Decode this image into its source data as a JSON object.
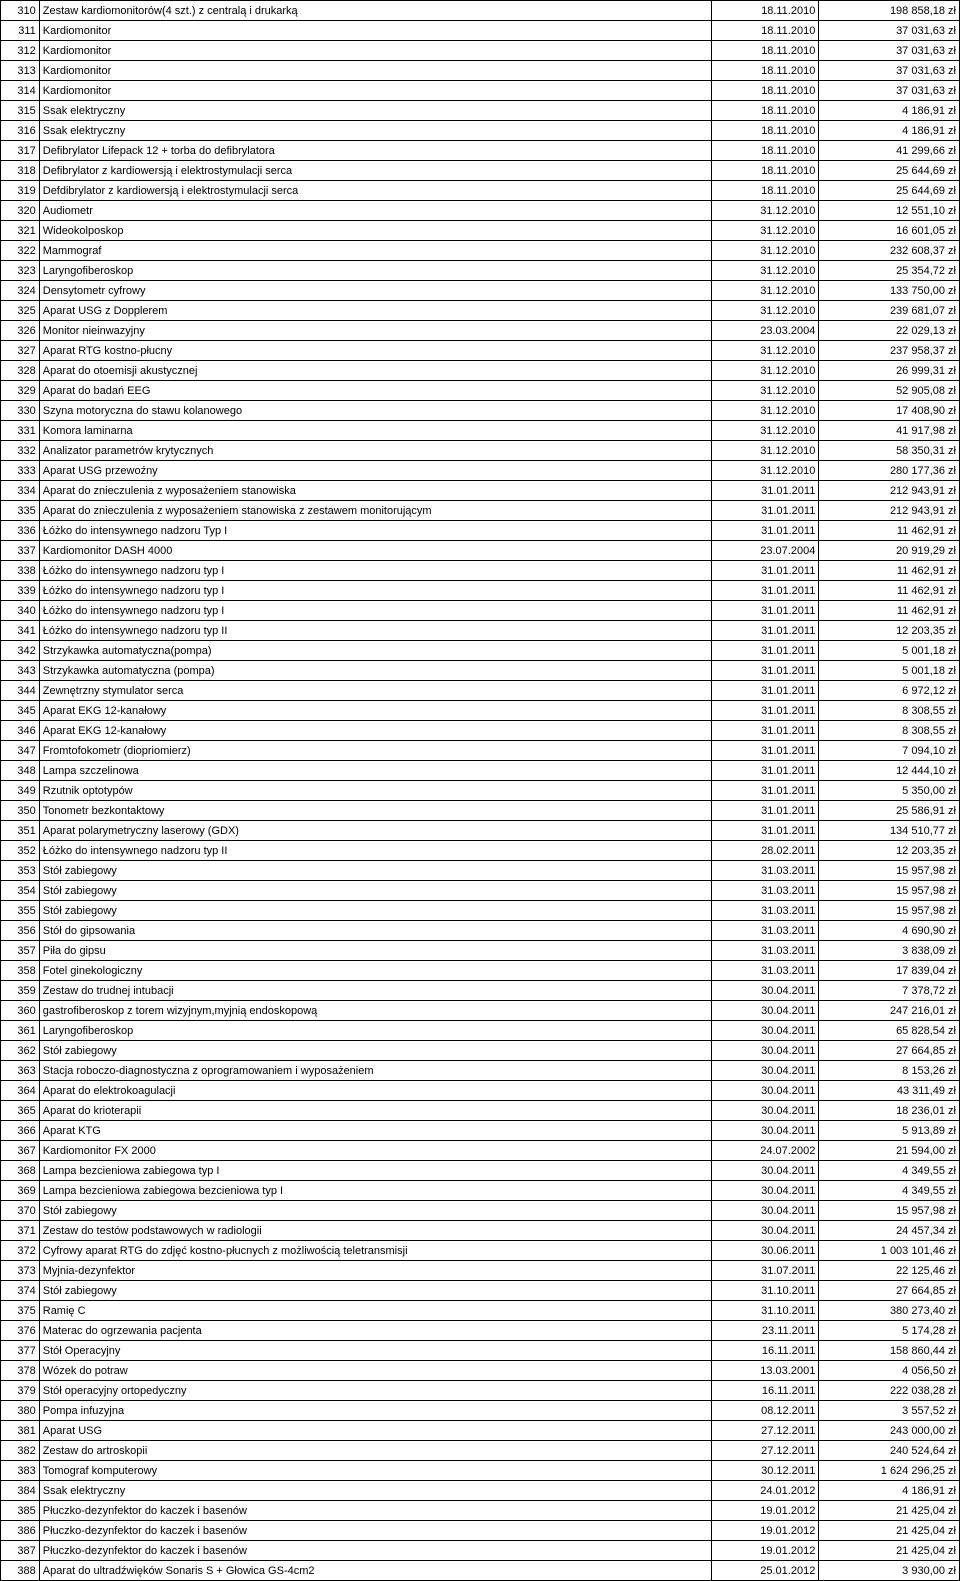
{
  "table": {
    "rows": [
      {
        "num": "310",
        "name": "Zestaw kardiomonitorów(4 szt.) z centralą i drukarką",
        "date": "18.11.2010",
        "value": "198 858,18 zł"
      },
      {
        "num": "311",
        "name": "Kardiomonitor",
        "date": "18.11.2010",
        "value": "37 031,63 zł"
      },
      {
        "num": "312",
        "name": "Kardiomonitor",
        "date": "18.11.2010",
        "value": "37 031,63 zł"
      },
      {
        "num": "313",
        "name": "Kardiomonitor",
        "date": "18.11.2010",
        "value": "37 031,63 zł"
      },
      {
        "num": "314",
        "name": "Kardiomonitor",
        "date": "18.11.2010",
        "value": "37 031,63 zł"
      },
      {
        "num": "315",
        "name": "Ssak elektryczny",
        "date": "18.11.2010",
        "value": "4 186,91 zł"
      },
      {
        "num": "316",
        "name": "Ssak elektryczny",
        "date": "18.11.2010",
        "value": "4 186,91 zł"
      },
      {
        "num": "317",
        "name": "Defibrylator Lifepack 12 + torba do defibrylatora",
        "date": "18.11.2010",
        "value": "41 299,66 zł"
      },
      {
        "num": "318",
        "name": "Defibrylator z kardiowersją i elektrostymulacji serca",
        "date": "18.11.2010",
        "value": "25 644,69 zł"
      },
      {
        "num": "319",
        "name": "Defdibrylator z kardiowersją i elektrostymulacji serca",
        "date": "18.11.2010",
        "value": "25 644,69 zł"
      },
      {
        "num": "320",
        "name": "Audiometr",
        "date": "31.12.2010",
        "value": "12 551,10 zł"
      },
      {
        "num": "321",
        "name": "Wideokolposkop",
        "date": "31.12.2010",
        "value": "16 601,05 zł"
      },
      {
        "num": "322",
        "name": "Mammograf",
        "date": "31.12.2010",
        "value": "232 608,37 zł"
      },
      {
        "num": "323",
        "name": "Laryngofiberoskop",
        "date": "31.12.2010",
        "value": "25 354,72 zł"
      },
      {
        "num": "324",
        "name": "Densytometr cyfrowy",
        "date": "31.12.2010",
        "value": "133 750,00 zł"
      },
      {
        "num": "325",
        "name": "Aparat USG z Dopplerem",
        "date": "31.12.2010",
        "value": "239 681,07 zł"
      },
      {
        "num": "326",
        "name": "Monitor nieinwazyjny",
        "date": "23.03.2004",
        "value": "22 029,13 zł"
      },
      {
        "num": "327",
        "name": "Aparat RTG kostno-płucny",
        "date": "31.12.2010",
        "value": "237 958,37 zł"
      },
      {
        "num": "328",
        "name": "Aparat do otoemisji akustycznej",
        "date": "31.12.2010",
        "value": "26 999,31 zł"
      },
      {
        "num": "329",
        "name": "Aparat do badań EEG",
        "date": "31.12.2010",
        "value": "52 905,08 zł"
      },
      {
        "num": "330",
        "name": "Szyna motoryczna do stawu kolanowego",
        "date": "31.12.2010",
        "value": "17 408,90 zł"
      },
      {
        "num": "331",
        "name": "Komora laminarna",
        "date": "31.12.2010",
        "value": "41 917,98 zł"
      },
      {
        "num": "332",
        "name": "Analizator parametrów krytycznych",
        "date": "31.12.2010",
        "value": "58 350,31 zł"
      },
      {
        "num": "333",
        "name": "Aparat USG przewoźny",
        "date": "31.12.2010",
        "value": "280 177,36 zł"
      },
      {
        "num": "334",
        "name": "Aparat do znieczulenia z wyposażeniem stanowiska",
        "date": "31.01.2011",
        "value": "212 943,91 zł"
      },
      {
        "num": "335",
        "name": "Aparat do znieczulenia z wyposażeniem stanowiska z zestawem monitorującym",
        "date": "31.01.2011",
        "value": "212 943,91 zł"
      },
      {
        "num": "336",
        "name": "Łóżko do intensywnego nadzoru Typ I",
        "date": "31.01.2011",
        "value": "11 462,91 zł"
      },
      {
        "num": "337",
        "name": "Kardiomonitor DASH 4000",
        "date": "23.07.2004",
        "value": "20 919,29 zł"
      },
      {
        "num": "338",
        "name": "Łóżko do intensywnego nadzoru typ I",
        "date": "31.01.2011",
        "value": "11 462,91 zł"
      },
      {
        "num": "339",
        "name": "Łóżko do intensywnego nadzoru typ I",
        "date": "31.01.2011",
        "value": "11 462,91 zł"
      },
      {
        "num": "340",
        "name": "Łóżko do intensywnego nadzoru typ I",
        "date": "31.01.2011",
        "value": "11 462,91 zł"
      },
      {
        "num": "341",
        "name": "Łóżko do intensywnego nadzoru typ II",
        "date": "31.01.2011",
        "value": "12 203,35 zł"
      },
      {
        "num": "342",
        "name": "Strzykawka automatyczna(pompa)",
        "date": "31.01.2011",
        "value": "5 001,18 zł"
      },
      {
        "num": "343",
        "name": "Strzykawka automatyczna (pompa)",
        "date": "31.01.2011",
        "value": "5 001,18 zł"
      },
      {
        "num": "344",
        "name": "Zewnętrzny stymulator serca",
        "date": "31.01.2011",
        "value": "6 972,12 zł"
      },
      {
        "num": "345",
        "name": "Aparat EKG 12-kanałowy",
        "date": "31.01.2011",
        "value": "8 308,55 zł"
      },
      {
        "num": "346",
        "name": "Aparat EKG 12-kanałowy",
        "date": "31.01.2011",
        "value": "8 308,55 zł"
      },
      {
        "num": "347",
        "name": "Fromtofokometr (diopriomierz)",
        "date": "31.01.2011",
        "value": "7 094,10 zł"
      },
      {
        "num": "348",
        "name": "Lampa szczelinowa",
        "date": "31.01.2011",
        "value": "12 444,10 zł"
      },
      {
        "num": "349",
        "name": "Rzutnik optotypów",
        "date": "31.01.2011",
        "value": "5 350,00 zł"
      },
      {
        "num": "350",
        "name": "Tonometr bezkontaktowy",
        "date": "31.01.2011",
        "value": "25 586,91 zł"
      },
      {
        "num": "351",
        "name": "Aparat polarymetryczny laserowy (GDX)",
        "date": "31.01.2011",
        "value": "134 510,77 zł"
      },
      {
        "num": "352",
        "name": "Łóżko do intensywnego nadzoru typ II",
        "date": "28.02.2011",
        "value": "12 203,35 zł"
      },
      {
        "num": "353",
        "name": "Stół zabiegowy",
        "date": "31.03.2011",
        "value": "15 957,98 zł"
      },
      {
        "num": "354",
        "name": "Stół zabiegowy",
        "date": "31.03.2011",
        "value": "15 957,98 zł"
      },
      {
        "num": "355",
        "name": "Stół zabiegowy",
        "date": "31.03.2011",
        "value": "15 957,98 zł"
      },
      {
        "num": "356",
        "name": "Stół do gipsowania",
        "date": "31.03.2011",
        "value": "4 690,90 zł"
      },
      {
        "num": "357",
        "name": "Piła do gipsu",
        "date": "31.03.2011",
        "value": "3 838,09 zł"
      },
      {
        "num": "358",
        "name": "Fotel ginekologiczny",
        "date": "31.03.2011",
        "value": "17 839,04 zł"
      },
      {
        "num": "359",
        "name": "Zestaw do trudnej intubacji",
        "date": "30.04.2011",
        "value": "7 378,72 zł"
      },
      {
        "num": "360",
        "name": "gastrofiberoskop z torem wizyjnym,myjnią endoskopową",
        "date": "30.04.2011",
        "value": "247 216,01 zł"
      },
      {
        "num": "361",
        "name": "Laryngofiberoskop",
        "date": "30.04.2011",
        "value": "65 828,54 zł"
      },
      {
        "num": "362",
        "name": "Stół zabiegowy",
        "date": "30.04.2011",
        "value": "27 664,85 zł"
      },
      {
        "num": "363",
        "name": "Stacja roboczo-diagnostyczna z oprogramowaniem i wyposażeniem",
        "date": "30.04.2011",
        "value": "8 153,26 zł"
      },
      {
        "num": "364",
        "name": "Aparat do elektrokoagulacji",
        "date": "30.04.2011",
        "value": "43 311,49 zł"
      },
      {
        "num": "365",
        "name": "Aparat do krioterapii",
        "date": "30.04.2011",
        "value": "18 236,01 zł"
      },
      {
        "num": "366",
        "name": "Aparat KTG",
        "date": "30.04.2011",
        "value": "5 913,89 zł"
      },
      {
        "num": "367",
        "name": "Kardiomonitor FX 2000",
        "date": "24.07.2002",
        "value": "21 594,00 zł"
      },
      {
        "num": "368",
        "name": "Lampa bezcieniowa zabiegowa typ I",
        "date": "30.04.2011",
        "value": "4 349,55 zł"
      },
      {
        "num": "369",
        "name": "Lampa bezcieniowa zabiegowa bezcieniowa typ I",
        "date": "30.04.2011",
        "value": "4 349,55 zł"
      },
      {
        "num": "370",
        "name": "Stół zabiegowy",
        "date": "30.04.2011",
        "value": "15 957,98 zł"
      },
      {
        "num": "371",
        "name": "Zestaw do testów podstawowych w radiologii",
        "date": "30.04.2011",
        "value": "24 457,34 zł"
      },
      {
        "num": "372",
        "name": "Cyfrowy aparat RTG do zdjęć kostno-płucnych z możliwością teletransmisji",
        "date": "30.06.2011",
        "value": "1 003 101,46 zł"
      },
      {
        "num": "373",
        "name": "Myjnia-dezynfektor",
        "date": "31.07.2011",
        "value": "22 125,46 zł"
      },
      {
        "num": "374",
        "name": "Stół zabiegowy",
        "date": "31.10.2011",
        "value": "27 664,85 zł"
      },
      {
        "num": "375",
        "name": "Ramię C",
        "date": "31.10.2011",
        "value": "380 273,40 zł"
      },
      {
        "num": "376",
        "name": "Materac do ogrzewania pacjenta",
        "date": "23.11.2011",
        "value": "5 174,28 zł"
      },
      {
        "num": "377",
        "name": "Stół Operacyjny",
        "date": "16.11.2011",
        "value": "158 860,44 zł"
      },
      {
        "num": "378",
        "name": "Wózek do potraw",
        "date": "13.03.2001",
        "value": "4 056,50 zł"
      },
      {
        "num": "379",
        "name": "Stół operacyjny ortopedyczny",
        "date": "16.11.2011",
        "value": "222 038,28 zł"
      },
      {
        "num": "380",
        "name": "Pompa infuzyjna",
        "date": "08.12.2011",
        "value": "3 557,52 zł"
      },
      {
        "num": "381",
        "name": "Aparat USG",
        "date": "27.12.2011",
        "value": "243 000,00 zł"
      },
      {
        "num": "382",
        "name": "Zestaw do artroskopii",
        "date": "27.12.2011",
        "value": "240 524,64 zł"
      },
      {
        "num": "383",
        "name": "Tomograf komputerowy",
        "date": "30.12.2011",
        "value": "1 624 296,25 zł"
      },
      {
        "num": "384",
        "name": "Ssak elektryczny",
        "date": "24.01.2012",
        "value": "4 186,91 zł"
      },
      {
        "num": "385",
        "name": "Płuczko-dezynfektor do kaczek i basenów",
        "date": "19.01.2012",
        "value": "21 425,04 zł"
      },
      {
        "num": "386",
        "name": "Płuczko-dezynfektor do kaczek i basenów",
        "date": "19.01.2012",
        "value": "21 425,04 zł"
      },
      {
        "num": "387",
        "name": "Płuczko-dezynfektor do kaczek i basenów",
        "date": "19.01.2012",
        "value": "21 425,04 zł"
      },
      {
        "num": "388",
        "name": "Aparat do ultradźwięków Sonaris S + Głowica GS-4cm2",
        "date": "25.01.2012",
        "value": "3 930,00 zł"
      }
    ]
  }
}
